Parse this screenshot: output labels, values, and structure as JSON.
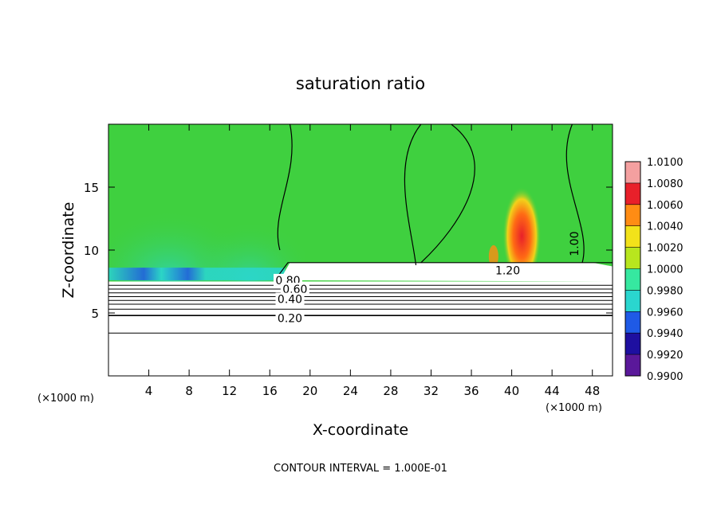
{
  "chart_data": {
    "type": "heatmap",
    "title": "saturation ratio",
    "xlabel": "X-coordinate",
    "ylabel": "Z-coordinate",
    "x_unit_left": "(×1000 m)",
    "x_unit_right": "(×1000 m)",
    "footer": "CONTOUR INTERVAL = 1.000E-01",
    "xlim": [
      0,
      50
    ],
    "ylim": [
      0,
      20
    ],
    "x_ticks": [
      4,
      8,
      12,
      16,
      20,
      24,
      28,
      32,
      36,
      40,
      44,
      48
    ],
    "y_ticks": [
      5,
      10,
      15
    ],
    "colorbar": {
      "levels": [
        0.99,
        0.992,
        0.994,
        0.996,
        0.998,
        1.0,
        1.002,
        1.004,
        1.006,
        1.008,
        1.01
      ],
      "labels": [
        "0.9900",
        "0.9920",
        "0.9940",
        "0.9960",
        "0.9980",
        "1.0000",
        "1.0020",
        "1.0040",
        "1.0060",
        "1.0080",
        "1.0100"
      ],
      "colors": [
        "#5a189a",
        "#1e0fa0",
        "#1f5ae6",
        "#2ad6cf",
        "#36e8a0",
        "#3fd03f",
        "#b8e61e",
        "#f2e21a",
        "#ff8c14",
        "#e8202a",
        "#f4a0a0"
      ]
    },
    "contour_labels": [
      {
        "text": "1.00",
        "x": 46.2,
        "y": 10.5,
        "rotate": -90
      },
      {
        "text": "1.20",
        "x": 39.6,
        "y": 8.4,
        "rotate": 0
      },
      {
        "text": "0.80",
        "x": 17.8,
        "y": 7.6,
        "rotate": 0
      },
      {
        "text": "0.60",
        "x": 18.5,
        "y": 6.9,
        "rotate": 0
      },
      {
        "text": "0.40",
        "x": 18.0,
        "y": 6.1,
        "rotate": 0
      },
      {
        "text": "0.20",
        "x": 18.0,
        "y": 4.6,
        "rotate": 0
      }
    ],
    "contour_lines_y": [
      3.4,
      4.8,
      5.3,
      5.7,
      6.0,
      6.3,
      6.6,
      6.9,
      7.2
    ]
  }
}
